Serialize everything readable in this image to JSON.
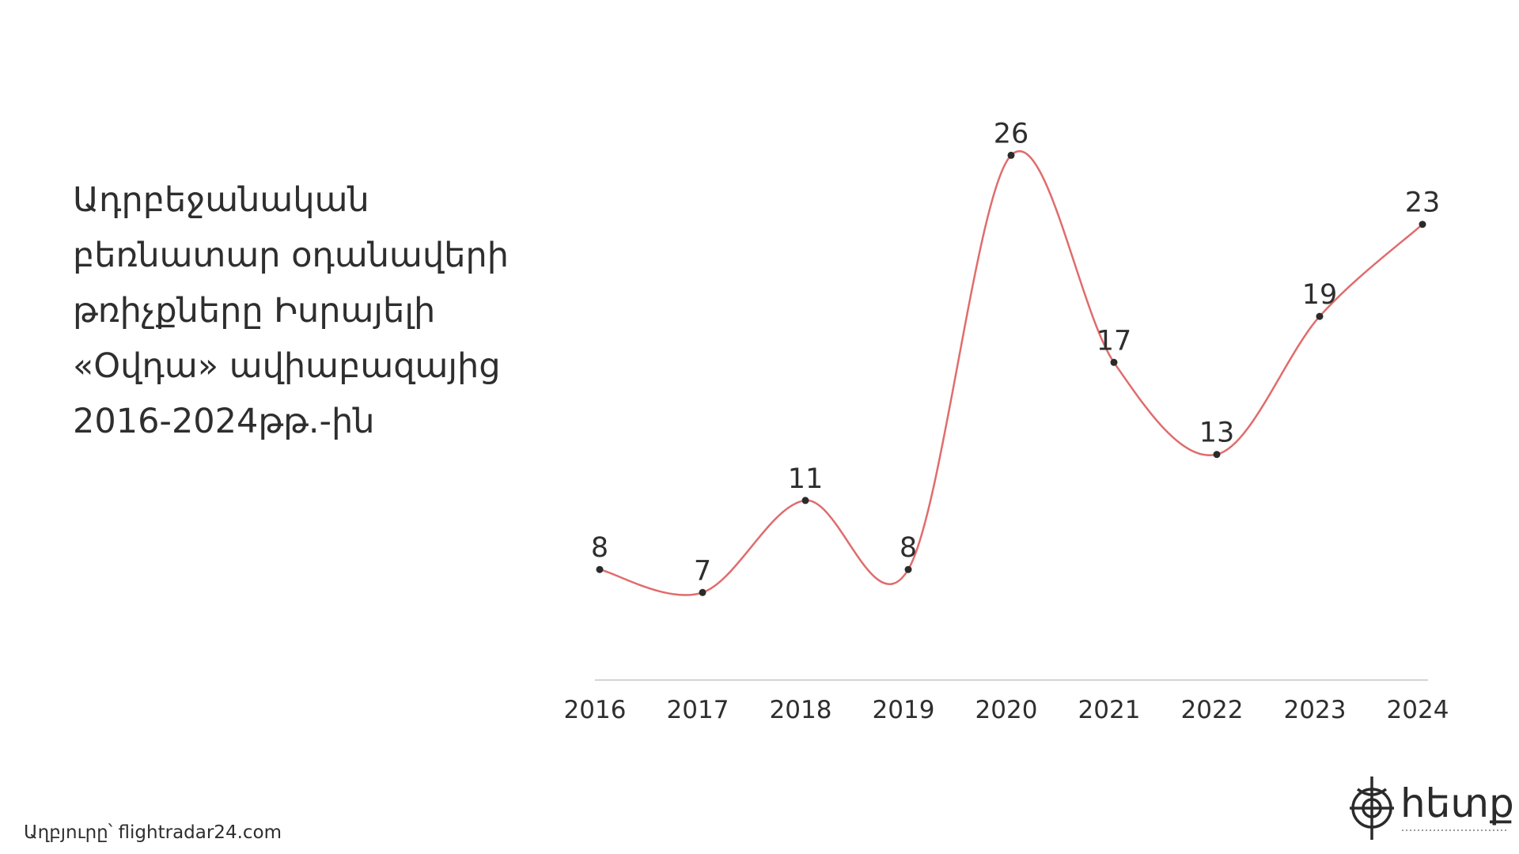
{
  "title_lines": [
    "Ադրբեջանական",
    "բեռնատար օդանավերի",
    "թռիչքները Իսրայելի",
    "«Օվդա» ավիաբազայից",
    "2016-2024թթ.-ին"
  ],
  "source": "Աղբյուրը՝ flightradar24.com",
  "logo": {
    "text": "hետք",
    "icon": "compass-logo-icon"
  },
  "colors": {
    "line": "#e06c6c",
    "point": "#2b2b2b",
    "axis": "#d4d4d4",
    "text": "#2e2e2e"
  },
  "chart_data": {
    "type": "line",
    "title": "Ադրբեջանական բեռնատար օդանավերի թռիչքները Իսրայելի «Օվդա» ավիաբազայից 2016-2024թթ.-ին",
    "xlabel": "",
    "ylabel": "",
    "categories": [
      "2016",
      "2017",
      "2018",
      "2019",
      "2020",
      "2021",
      "2022",
      "2023",
      "2024"
    ],
    "series": [
      {
        "values": [
          8,
          7,
          11,
          8,
          26,
          17,
          13,
          19,
          23
        ]
      }
    ],
    "ylim": [
      0,
      30
    ],
    "grid": false,
    "legend": "none",
    "data_labels": true,
    "smooth": true
  }
}
